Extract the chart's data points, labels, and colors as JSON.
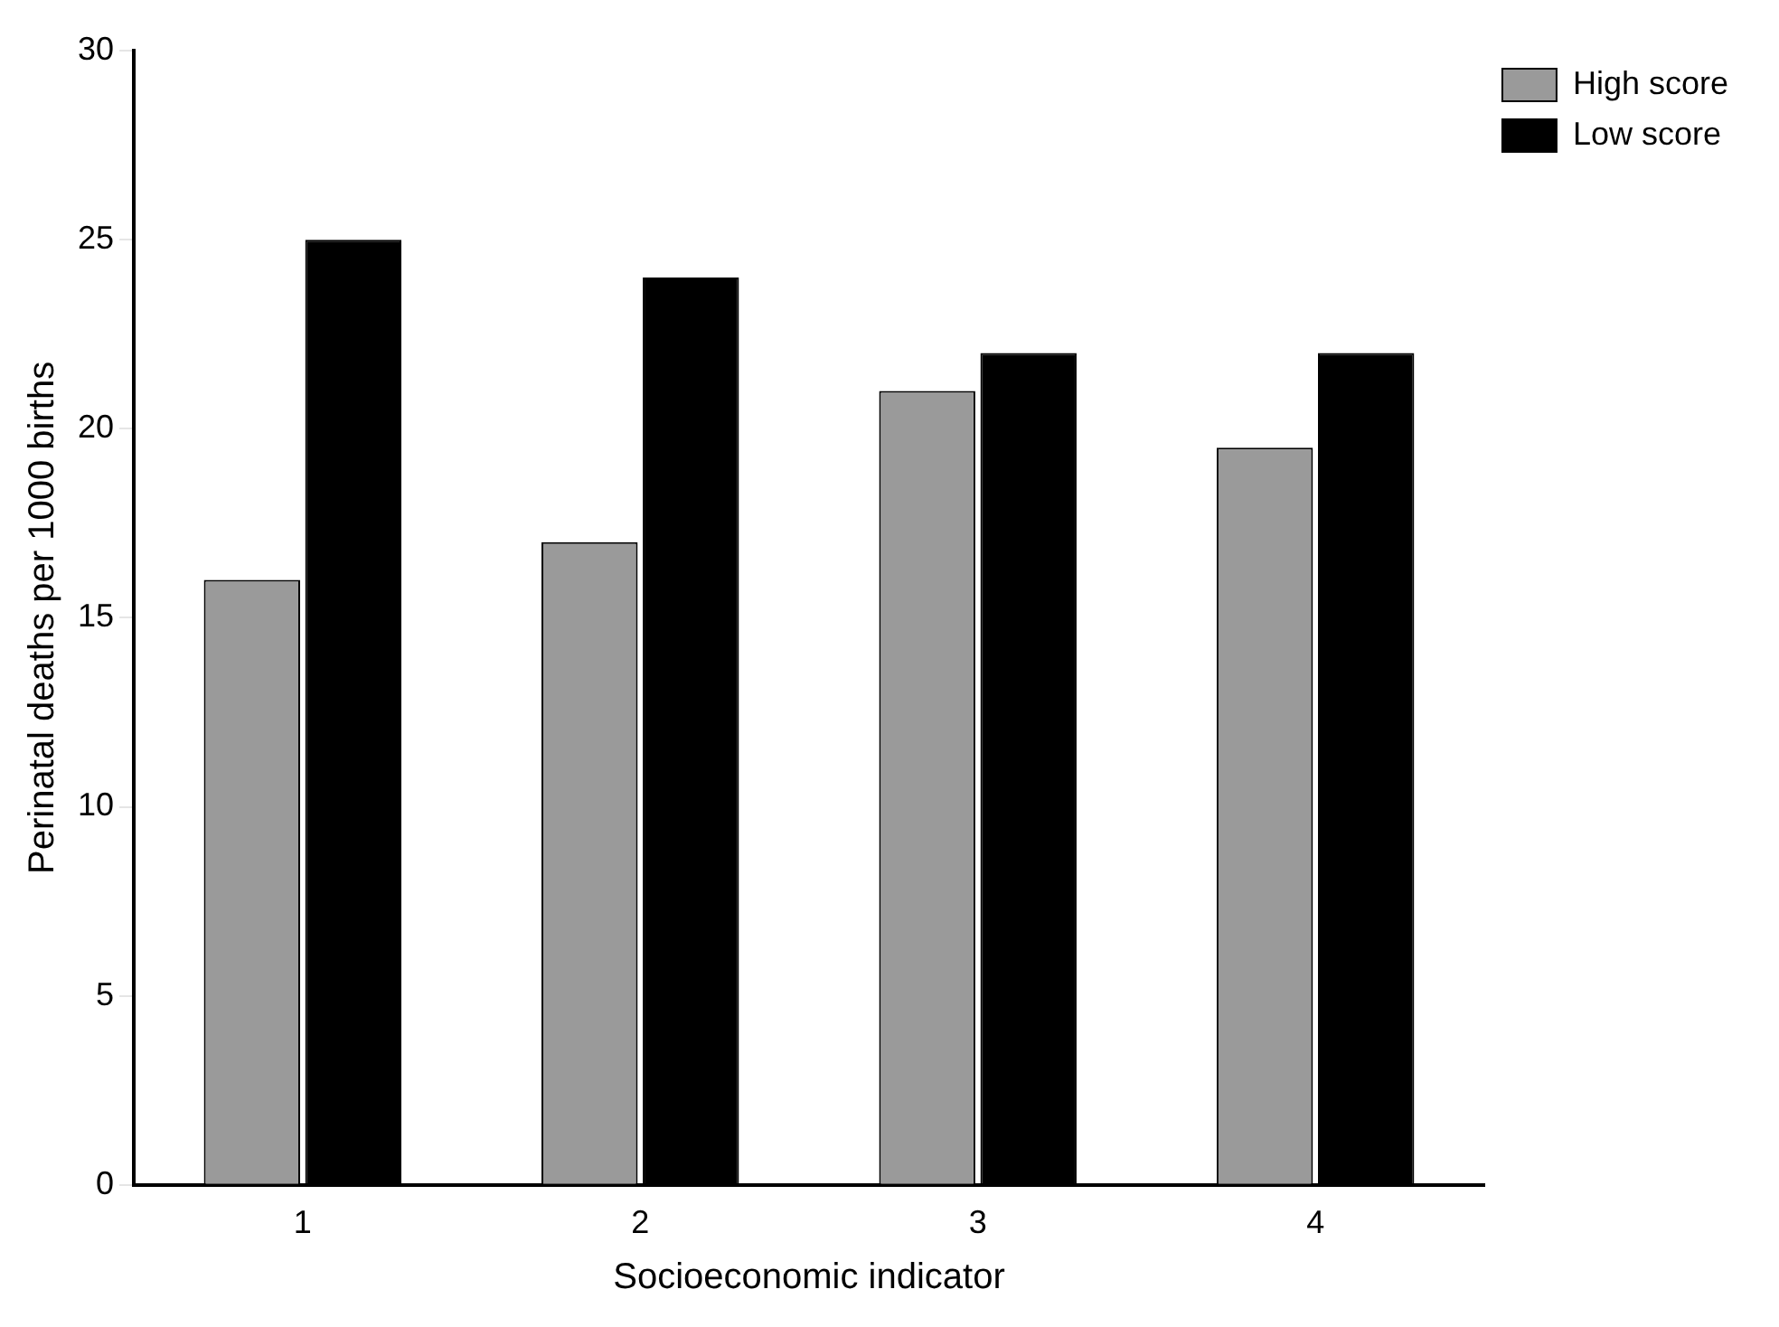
{
  "chart_data": {
    "type": "bar",
    "xlabel": "Socioeconomic indicator",
    "ylabel": "Perinatal deaths per 1000 births",
    "categories": [
      "1",
      "2",
      "3",
      "4"
    ],
    "series": [
      {
        "name": "High score",
        "color": "#9a9a9a",
        "values": [
          16,
          17,
          21,
          19.5
        ]
      },
      {
        "name": "Low score",
        "color": "#000000",
        "values": [
          25,
          24,
          22,
          22
        ]
      }
    ],
    "ylim": [
      0,
      30
    ],
    "yticks": [
      0,
      5,
      10,
      15,
      20,
      25,
      30
    ],
    "grid": false,
    "legend": "top right"
  }
}
